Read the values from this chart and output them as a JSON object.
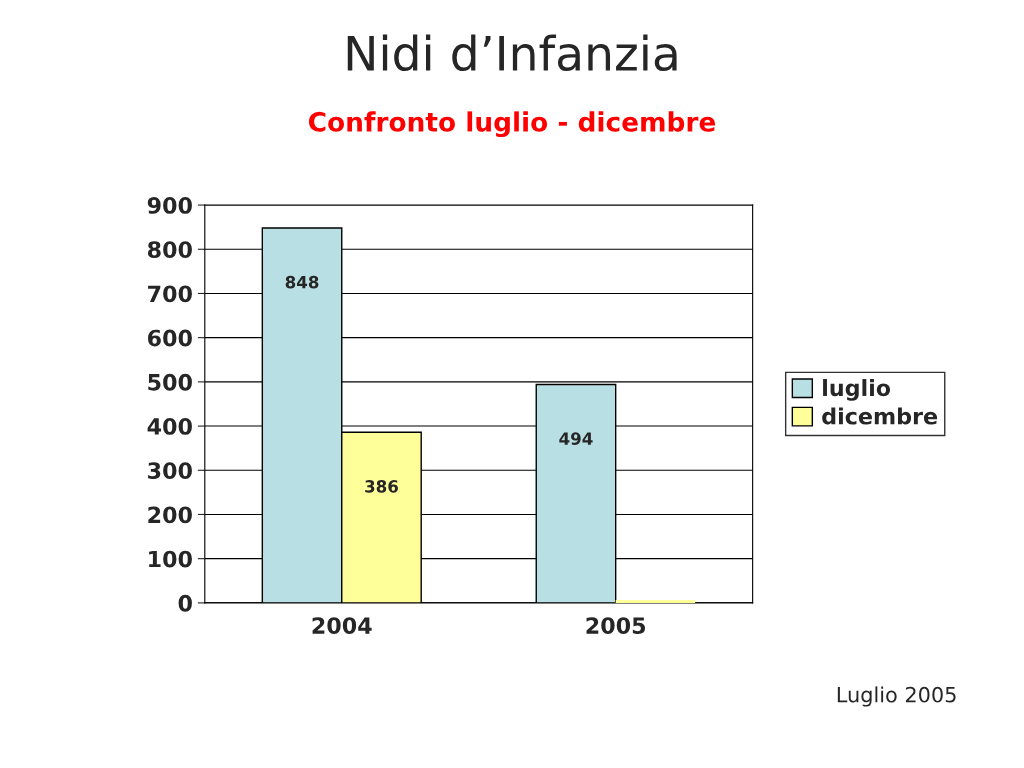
{
  "chart_data": {
    "type": "bar",
    "title": "Nidi d’Infanzia",
    "subtitle": "Confronto luglio - dicembre",
    "categories": [
      "2004",
      "2005"
    ],
    "series": [
      {
        "name": "luglio",
        "color": "#b8dfe3",
        "values": [
          848,
          494
        ],
        "value_labels": [
          "848",
          "494"
        ]
      },
      {
        "name": "dicembre",
        "color": "#ffff99",
        "values": [
          386,
          0
        ],
        "value_labels": [
          "386",
          null
        ]
      }
    ],
    "ylim": [
      0,
      900
    ],
    "yticks": [
      0,
      100,
      200,
      300,
      400,
      500,
      600,
      700,
      800,
      900
    ],
    "grid": "y",
    "legend": "right",
    "annotations": [
      "Luglio 2005"
    ]
  }
}
